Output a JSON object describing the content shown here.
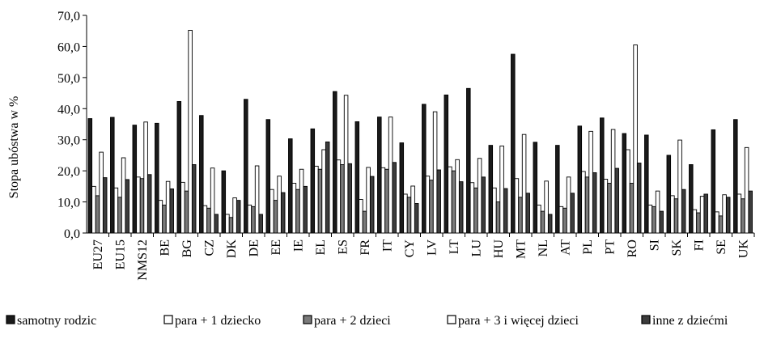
{
  "chart_data": {
    "type": "bar",
    "ylabel": "Stopa ubóstwa w %",
    "ylim": [
      0,
      70
    ],
    "yticks": [
      "0,0",
      "10,0",
      "20,0",
      "30,0",
      "40,0",
      "50,0",
      "60,0",
      "70,0"
    ],
    "grid": false,
    "legend_position": "bottom",
    "categories": [
      "EU27",
      "EU15",
      "NMS12",
      "BE",
      "BG",
      "CZ",
      "DK",
      "DE",
      "EE",
      "IE",
      "EL",
      "ES",
      "FR",
      "IT",
      "CY",
      "LV",
      "LT",
      "LU",
      "HU",
      "MT",
      "NL",
      "AT",
      "PL",
      "PT",
      "RO",
      "SI",
      "SK",
      "FI",
      "SE",
      "UK"
    ],
    "series": [
      {
        "name": "samotny rodzic",
        "color": "#1a1a1a",
        "values": [
          36.8,
          37.2,
          34.7,
          35.3,
          42.3,
          37.8,
          20.0,
          43.0,
          36.5,
          30.3,
          33.5,
          45.5,
          35.8,
          37.3,
          29.0,
          41.4,
          44.4,
          46.5,
          28.2,
          57.5,
          29.2,
          28.2,
          34.4,
          37.0,
          32.0,
          31.5,
          25.0,
          22.0,
          33.2,
          36.5
        ]
      },
      {
        "name": "para + 1 dziecko",
        "color": "#ffffff",
        "values": [
          15.0,
          14.5,
          18.0,
          10.5,
          16.3,
          8.8,
          6.0,
          9.0,
          14.0,
          16.0,
          21.5,
          23.5,
          10.8,
          21.0,
          12.5,
          18.3,
          21.3,
          16.2,
          14.5,
          17.5,
          9.0,
          8.5,
          19.8,
          17.3,
          26.8,
          9.0,
          12.0,
          7.5,
          6.8,
          12.5
        ]
      },
      {
        "name": "para + 2 dzieci",
        "color": "#7a7a7a",
        "values": [
          12.0,
          11.5,
          17.5,
          9.0,
          13.5,
          8.0,
          5.0,
          8.5,
          10.5,
          14.0,
          20.5,
          22.0,
          7.0,
          20.5,
          11.5,
          17.0,
          20.0,
          14.5,
          10.0,
          11.5,
          7.0,
          8.0,
          18.0,
          16.0,
          16.0,
          8.5,
          11.0,
          6.5,
          5.5,
          11.0
        ]
      },
      {
        "name": "para +  3 i więcej dzieci",
        "color": "#ffffff",
        "values": [
          26.0,
          24.2,
          35.7,
          16.6,
          65.2,
          20.9,
          11.3,
          21.6,
          18.3,
          20.5,
          26.8,
          44.3,
          21.1,
          37.3,
          15.1,
          39.0,
          23.6,
          24.0,
          28.0,
          31.7,
          16.7,
          18.0,
          32.7,
          33.3,
          60.5,
          13.5,
          29.9,
          11.8,
          12.3,
          27.5
        ]
      },
      {
        "name": "inne z dziećmi",
        "color": "#3c3c3c",
        "values": [
          17.8,
          17.2,
          18.8,
          14.2,
          22.0,
          6.0,
          10.5,
          6.0,
          13.0,
          15.0,
          29.3,
          22.3,
          18.2,
          22.7,
          9.5,
          20.3,
          16.5,
          18.0,
          14.3,
          12.8,
          6.0,
          12.8,
          19.4,
          20.8,
          22.5,
          7.0,
          14.0,
          12.5,
          11.5,
          13.5
        ]
      }
    ]
  }
}
